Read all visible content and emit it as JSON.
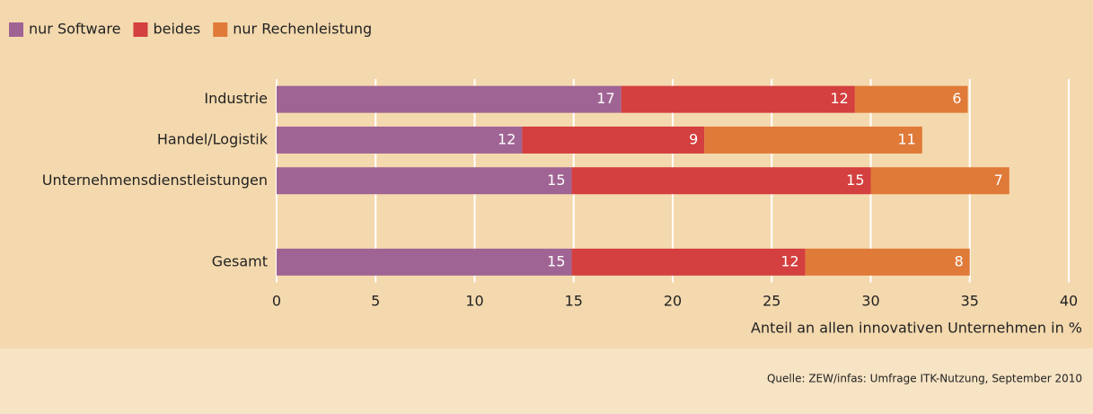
{
  "chart_data": {
    "type": "stacked-bar-horizontal",
    "categories": [
      "Industrie",
      "Handel/Logistik",
      "Unternehmensdienstleistungen",
      null,
      "Gesamt"
    ],
    "series": [
      {
        "name": "nur Software",
        "color": "#a06494",
        "values": [
          17.4,
          12.4,
          14.9,
          null,
          14.9
        ],
        "value_labels": [
          "17",
          "12",
          "15",
          null,
          "15"
        ]
      },
      {
        "name": "beides",
        "color": "#d43f3f",
        "values": [
          11.8,
          9.2,
          15.1,
          null,
          11.8
        ],
        "value_labels": [
          "12",
          "9",
          "15",
          null,
          "12"
        ]
      },
      {
        "name": "nur Rechenleistung",
        "color": "#e07a38",
        "values": [
          5.7,
          11.0,
          7.0,
          null,
          8.3
        ],
        "value_labels": [
          "6",
          "11",
          "7",
          null,
          "8"
        ]
      }
    ],
    "xlim": [
      0,
      40
    ],
    "xticks": [
      0,
      5,
      10,
      15,
      20,
      25,
      30,
      35,
      40
    ],
    "grid": true,
    "x_label": "Anteil an allen innovativen Unternehmen in %",
    "source": "Quelle: ZEW/infas: Umfrage ITK-Nutzung, September 2010",
    "legend": "top-left"
  }
}
